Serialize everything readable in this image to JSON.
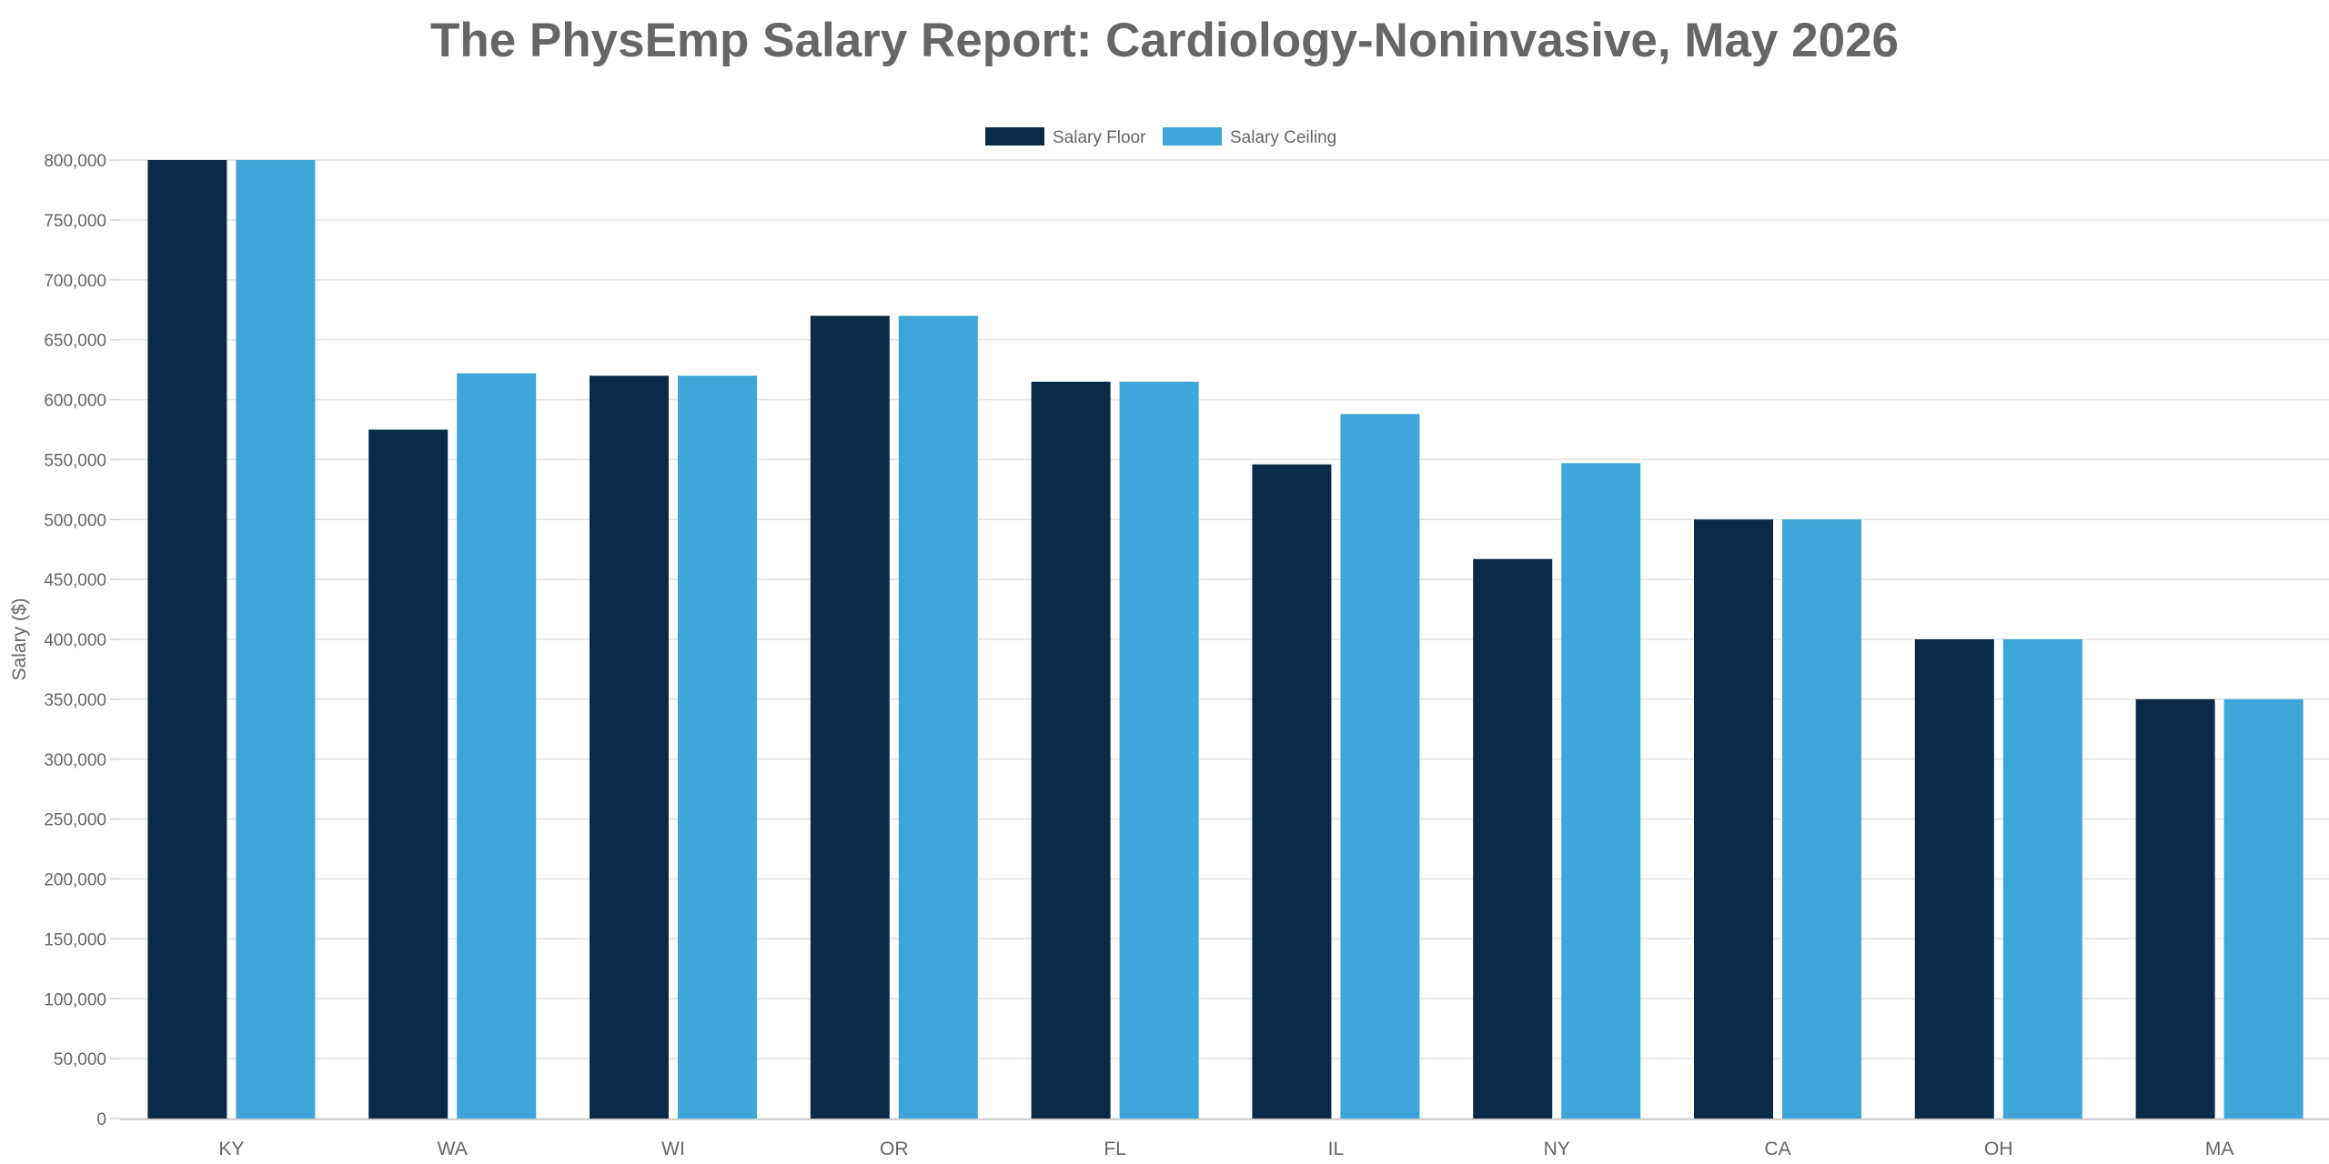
{
  "chart_data": {
    "type": "bar",
    "title": "The PhysEmp Salary Report: Cardiology-Noninvasive, May 2026",
    "xlabel": "",
    "ylabel": "Salary ($)",
    "categories": [
      "KY",
      "WA",
      "WI",
      "OR",
      "FL",
      "IL",
      "NY",
      "CA",
      "OH",
      "MA"
    ],
    "series": [
      {
        "name": "Salary Floor",
        "color": "#0b2a48",
        "values": [
          800000,
          575000,
          620000,
          670000,
          615000,
          546000,
          467000,
          500000,
          400000,
          350000
        ]
      },
      {
        "name": "Salary Ceiling",
        "color": "#3ea6d8",
        "values": [
          800000,
          622000,
          620000,
          670000,
          615000,
          588000,
          547000,
          500000,
          400000,
          350000
        ]
      }
    ],
    "ylim": [
      0,
      800000
    ],
    "yticks": [
      "0",
      "50,000",
      "100,000",
      "150,000",
      "200,000",
      "250,000",
      "300,000",
      "350,000",
      "400,000",
      "450,000",
      "500,000",
      "550,000",
      "600,000",
      "650,000",
      "700,000",
      "750,000",
      "800,000"
    ],
    "grid": true,
    "legend_position": "top-center"
  }
}
